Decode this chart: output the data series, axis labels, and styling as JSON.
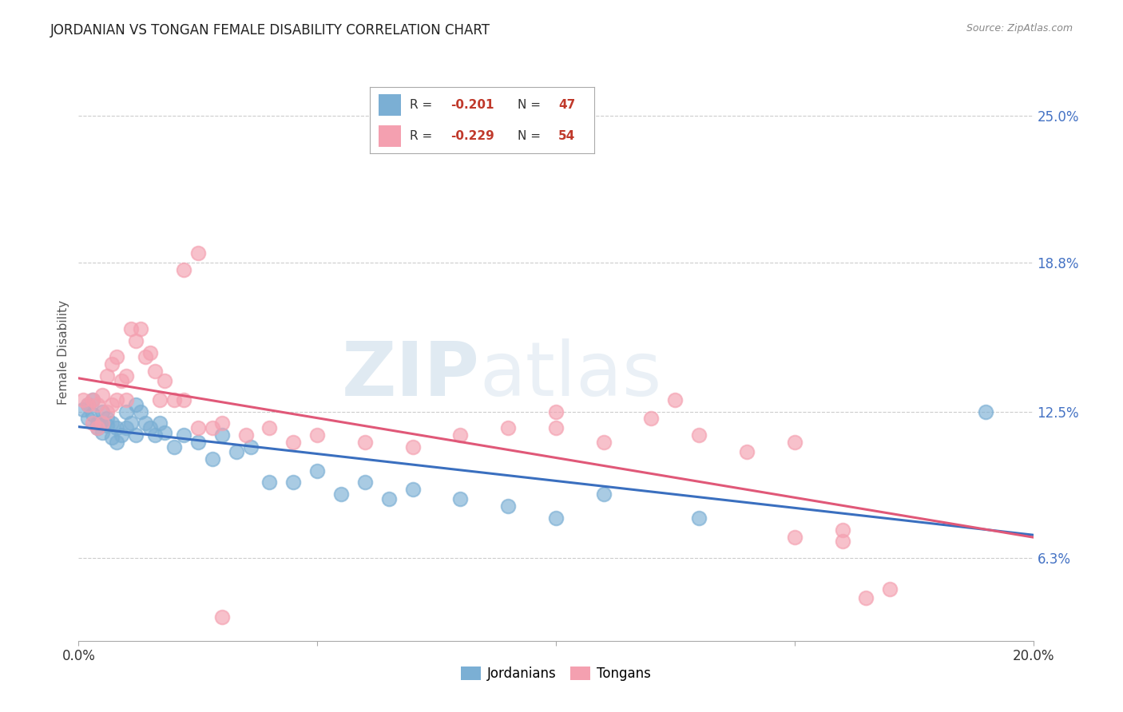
{
  "title": "JORDANIAN VS TONGAN FEMALE DISABILITY CORRELATION CHART",
  "source": "Source: ZipAtlas.com",
  "ylabel": "Female Disability",
  "xlabel": "",
  "xlim": [
    0.0,
    0.2
  ],
  "ylim": [
    0.028,
    0.272
  ],
  "yticks": [
    0.063,
    0.125,
    0.188,
    0.25
  ],
  "ytick_labels": [
    "6.3%",
    "12.5%",
    "18.8%",
    "25.0%"
  ],
  "xticks": [
    0.0,
    0.05,
    0.1,
    0.15,
    0.2
  ],
  "xtick_labels": [
    "0.0%",
    "",
    "",
    "",
    "20.0%"
  ],
  "grid_color": "#cccccc",
  "background_color": "#ffffff",
  "legend_R_jordan": "-0.201",
  "legend_N_jordan": "47",
  "legend_R_tonga": "-0.229",
  "legend_N_tonga": "54",
  "jordan_color": "#7bafd4",
  "tonga_color": "#f4a0b0",
  "jordan_line_color": "#3a6fbf",
  "tonga_line_color": "#e05878",
  "watermark_zip": "ZIP",
  "watermark_atlas": "atlas",
  "jordan_x": [
    0.001,
    0.002,
    0.002,
    0.003,
    0.003,
    0.004,
    0.004,
    0.005,
    0.005,
    0.006,
    0.006,
    0.007,
    0.007,
    0.008,
    0.008,
    0.009,
    0.01,
    0.01,
    0.011,
    0.012,
    0.012,
    0.013,
    0.014,
    0.015,
    0.016,
    0.017,
    0.018,
    0.02,
    0.022,
    0.025,
    0.028,
    0.03,
    0.033,
    0.036,
    0.04,
    0.045,
    0.05,
    0.055,
    0.06,
    0.065,
    0.07,
    0.08,
    0.09,
    0.1,
    0.11,
    0.13,
    0.19
  ],
  "jordan_y": [
    0.126,
    0.128,
    0.122,
    0.13,
    0.124,
    0.12,
    0.118,
    0.125,
    0.116,
    0.122,
    0.119,
    0.12,
    0.114,
    0.118,
    0.112,
    0.115,
    0.125,
    0.118,
    0.12,
    0.128,
    0.115,
    0.125,
    0.12,
    0.118,
    0.115,
    0.12,
    0.116,
    0.11,
    0.115,
    0.112,
    0.105,
    0.115,
    0.108,
    0.11,
    0.095,
    0.095,
    0.1,
    0.09,
    0.095,
    0.088,
    0.092,
    0.088,
    0.085,
    0.08,
    0.09,
    0.08,
    0.125
  ],
  "tonga_x": [
    0.001,
    0.002,
    0.003,
    0.003,
    0.004,
    0.004,
    0.005,
    0.005,
    0.006,
    0.006,
    0.007,
    0.007,
    0.008,
    0.008,
    0.009,
    0.01,
    0.01,
    0.011,
    0.012,
    0.013,
    0.014,
    0.015,
    0.016,
    0.017,
    0.018,
    0.02,
    0.022,
    0.025,
    0.028,
    0.03,
    0.035,
    0.04,
    0.045,
    0.05,
    0.06,
    0.07,
    0.08,
    0.09,
    0.1,
    0.11,
    0.12,
    0.13,
    0.14,
    0.15,
    0.16,
    0.022,
    0.025,
    0.03,
    0.15,
    0.16,
    0.165,
    0.17,
    0.1,
    0.125
  ],
  "tonga_y": [
    0.13,
    0.128,
    0.13,
    0.12,
    0.128,
    0.118,
    0.132,
    0.12,
    0.14,
    0.125,
    0.145,
    0.128,
    0.148,
    0.13,
    0.138,
    0.14,
    0.13,
    0.16,
    0.155,
    0.16,
    0.148,
    0.15,
    0.142,
    0.13,
    0.138,
    0.13,
    0.13,
    0.118,
    0.118,
    0.12,
    0.115,
    0.118,
    0.112,
    0.115,
    0.112,
    0.11,
    0.115,
    0.118,
    0.118,
    0.112,
    0.122,
    0.115,
    0.108,
    0.112,
    0.075,
    0.185,
    0.192,
    0.038,
    0.072,
    0.07,
    0.046,
    0.05,
    0.125,
    0.13
  ]
}
